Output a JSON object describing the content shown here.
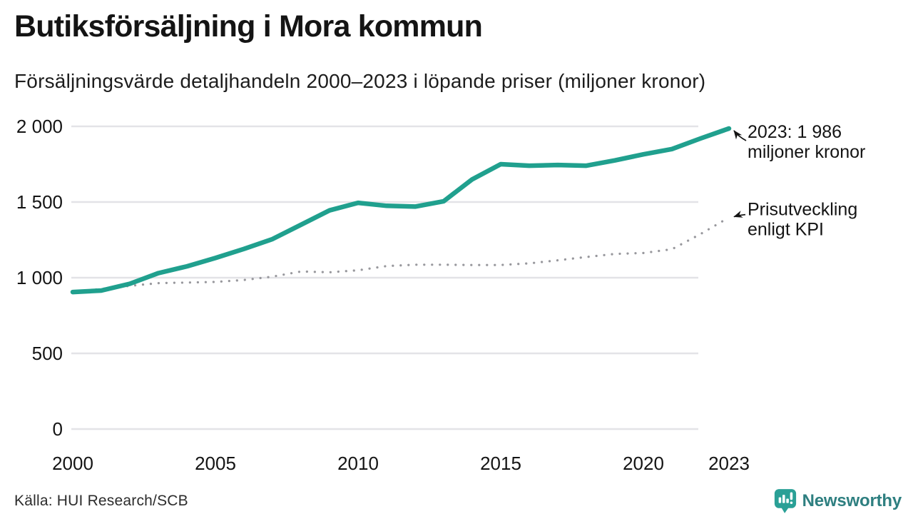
{
  "header": {
    "title": "Butiksförsäljning i Mora kommun",
    "subtitle": "Försäljningsvärde detaljhandeln 2000–2023 i löpande priser (miljoner kronor)"
  },
  "chart_data": {
    "type": "line",
    "title": "Butiksförsäljning i Mora kommun",
    "subtitle": "Försäljningsvärde detaljhandeln 2000–2023 i löpande priser (miljoner kronor)",
    "x": [
      2000,
      2001,
      2002,
      2003,
      2004,
      2005,
      2006,
      2007,
      2008,
      2009,
      2010,
      2011,
      2012,
      2013,
      2014,
      2015,
      2016,
      2017,
      2018,
      2019,
      2020,
      2021,
      2022,
      2023
    ],
    "series": [
      {
        "name": "Försäljningsvärde detaljhandeln (löpande priser)",
        "style": "solid",
        "color": "#20a08e",
        "values": [
          905,
          915,
          960,
          1030,
          1075,
          1130,
          1190,
          1255,
          1350,
          1445,
          1495,
          1475,
          1470,
          1505,
          1650,
          1750,
          1740,
          1745,
          1740,
          1775,
          1815,
          1850,
          1920,
          1986
        ]
      },
      {
        "name": "Prisutveckling enligt KPI",
        "style": "dotted",
        "color": "#98989d",
        "values": [
          905,
          926,
          946,
          964,
          968,
          972,
          985,
          1007,
          1041,
          1036,
          1049,
          1077,
          1086,
          1086,
          1084,
          1084,
          1095,
          1115,
          1137,
          1157,
          1163,
          1188,
          1288,
          1398
        ]
      }
    ],
    "ylim": [
      0,
      2000
    ],
    "xlim": [
      2000,
      2023
    ],
    "grid": "horizontal",
    "legend": "none (annotated directly)",
    "yticks": [
      {
        "value": 0,
        "label": "0"
      },
      {
        "value": 500,
        "label": "500"
      },
      {
        "value": 1000,
        "label": "1 000"
      },
      {
        "value": 1500,
        "label": "1 500"
      },
      {
        "value": 2000,
        "label": "2 000"
      }
    ],
    "xticks": [
      {
        "value": 2000,
        "label": "2000"
      },
      {
        "value": 2005,
        "label": "2005"
      },
      {
        "value": 2010,
        "label": "2010"
      },
      {
        "value": 2015,
        "label": "2015"
      },
      {
        "value": 2020,
        "label": "2020"
      },
      {
        "value": 2023,
        "label": "2023"
      }
    ],
    "annotations": [
      {
        "series": 0,
        "lines": [
          "2023: 1 986",
          "miljoner kronor"
        ]
      },
      {
        "series": 1,
        "lines": [
          "Prisutveckling",
          "enligt KPI"
        ]
      }
    ]
  },
  "footer": {
    "source": "Källa: HUI Research/SCB",
    "brand": "Newsworthy"
  },
  "colors": {
    "sales_line": "#20a08e",
    "kpi_line": "#98989d",
    "gridline": "#e3e3e7",
    "text": "#141414",
    "brand_teal": "#2e7f80",
    "brand_icon": "#2aa096"
  }
}
